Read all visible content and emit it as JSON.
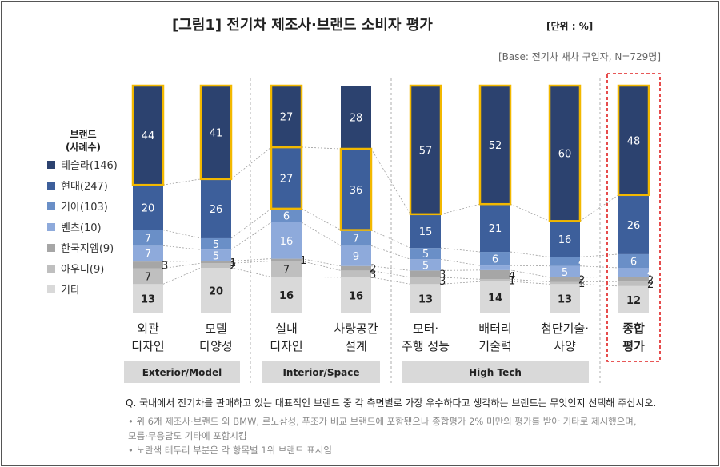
{
  "title": "[그림1] 전기차 제조사·브랜드 소비자 평가",
  "unit": "[단위 : %]",
  "base_note": "[Base: 전기차 새차 구입자, N=729명]",
  "legend_title": [
    "브랜드",
    "(사례수)"
  ],
  "question": "Q. 국내에서 전기차를 판매하고 있는 대표적인 브랜드 중 각 측면별로 가장 우수하다고 생각하는 브랜드는 무엇인지 선택해 주십시오.",
  "footnotes": [
    "•  위 6개 제조사·브랜드 외 BMW, 르노삼성, 푸조가 비교 브랜드에 포함됐으나 종합평가 2% 미만의 평가를 받아 기타로 제시했으며,",
    "    모름·무응답도 기타에 포함시킴",
    "•  노란색 테두리 부분은 각 항목별 1위 브랜드 표시임"
  ],
  "chart_data": {
    "type": "bar",
    "stacked": true,
    "categories": [
      [
        "외관",
        "디자인"
      ],
      [
        "모델",
        "다양성"
      ],
      [
        "실내",
        "디자인"
      ],
      [
        "차량공간",
        "설계"
      ],
      [
        "모터·",
        "주행 성능"
      ],
      [
        "배터리",
        "기술력"
      ],
      [
        "첨단기술·",
        "사양"
      ],
      [
        "종합",
        "평가"
      ]
    ],
    "groups": [
      {
        "label": "Exterior/Model",
        "categories": [
          0,
          1
        ]
      },
      {
        "label": "Interior/Space",
        "categories": [
          2,
          3
        ]
      },
      {
        "label": "High Tech",
        "categories": [
          4,
          5,
          6
        ]
      }
    ],
    "series": [
      {
        "name": "기타",
        "color": "#d9d9d9",
        "values": [
          13,
          20,
          16,
          16,
          13,
          14,
          13,
          12
        ]
      },
      {
        "name": "아우디(9)",
        "color": "#bfbfbf",
        "values": [
          7,
          2,
          7,
          3,
          3,
          1,
          1,
          2
        ]
      },
      {
        "name": "한국지엠(9)",
        "color": "#a6a6a6",
        "values": [
          3,
          1,
          1,
          2,
          3,
          4,
          2,
          2
        ]
      },
      {
        "name": "벤츠(10)",
        "color": "#8eaadb",
        "values": [
          7,
          5,
          16,
          9,
          5,
          2,
          5,
          4
        ]
      },
      {
        "name": "기아(103)",
        "color": "#6a8fc7",
        "values": [
          7,
          5,
          6,
          7,
          5,
          6,
          4,
          6
        ]
      },
      {
        "name": "현대(247)",
        "color": "#3d5f9b",
        "values": [
          20,
          26,
          27,
          36,
          15,
          21,
          16,
          26
        ]
      },
      {
        "name": "테슬라(146)",
        "color": "#2c426f",
        "values": [
          44,
          41,
          27,
          28,
          57,
          52,
          60,
          48
        ]
      }
    ],
    "legend_order": [
      "테슬라(146)",
      "현대(247)",
      "기아(103)",
      "벤츠(10)",
      "한국지엠(9)",
      "아우디(9)",
      "기타"
    ],
    "highlight_top": [
      {
        "category": 0,
        "series": "테슬라(146)"
      },
      {
        "category": 1,
        "series": "테슬라(146)"
      },
      {
        "category": 2,
        "series": "테슬라(146)"
      },
      {
        "category": 2,
        "series": "현대(247)"
      },
      {
        "category": 3,
        "series": "현대(247)"
      },
      {
        "category": 4,
        "series": "테슬라(146)"
      },
      {
        "category": 5,
        "series": "테슬라(146)"
      },
      {
        "category": 6,
        "series": "테슬라(146)"
      },
      {
        "category": 7,
        "series": "테슬라(146)"
      }
    ],
    "highlight_color": "#f2b800",
    "emphasis_color": "#e02020",
    "emphasized_category": 7,
    "ylim": [
      0,
      100
    ],
    "legend_position": "left"
  }
}
